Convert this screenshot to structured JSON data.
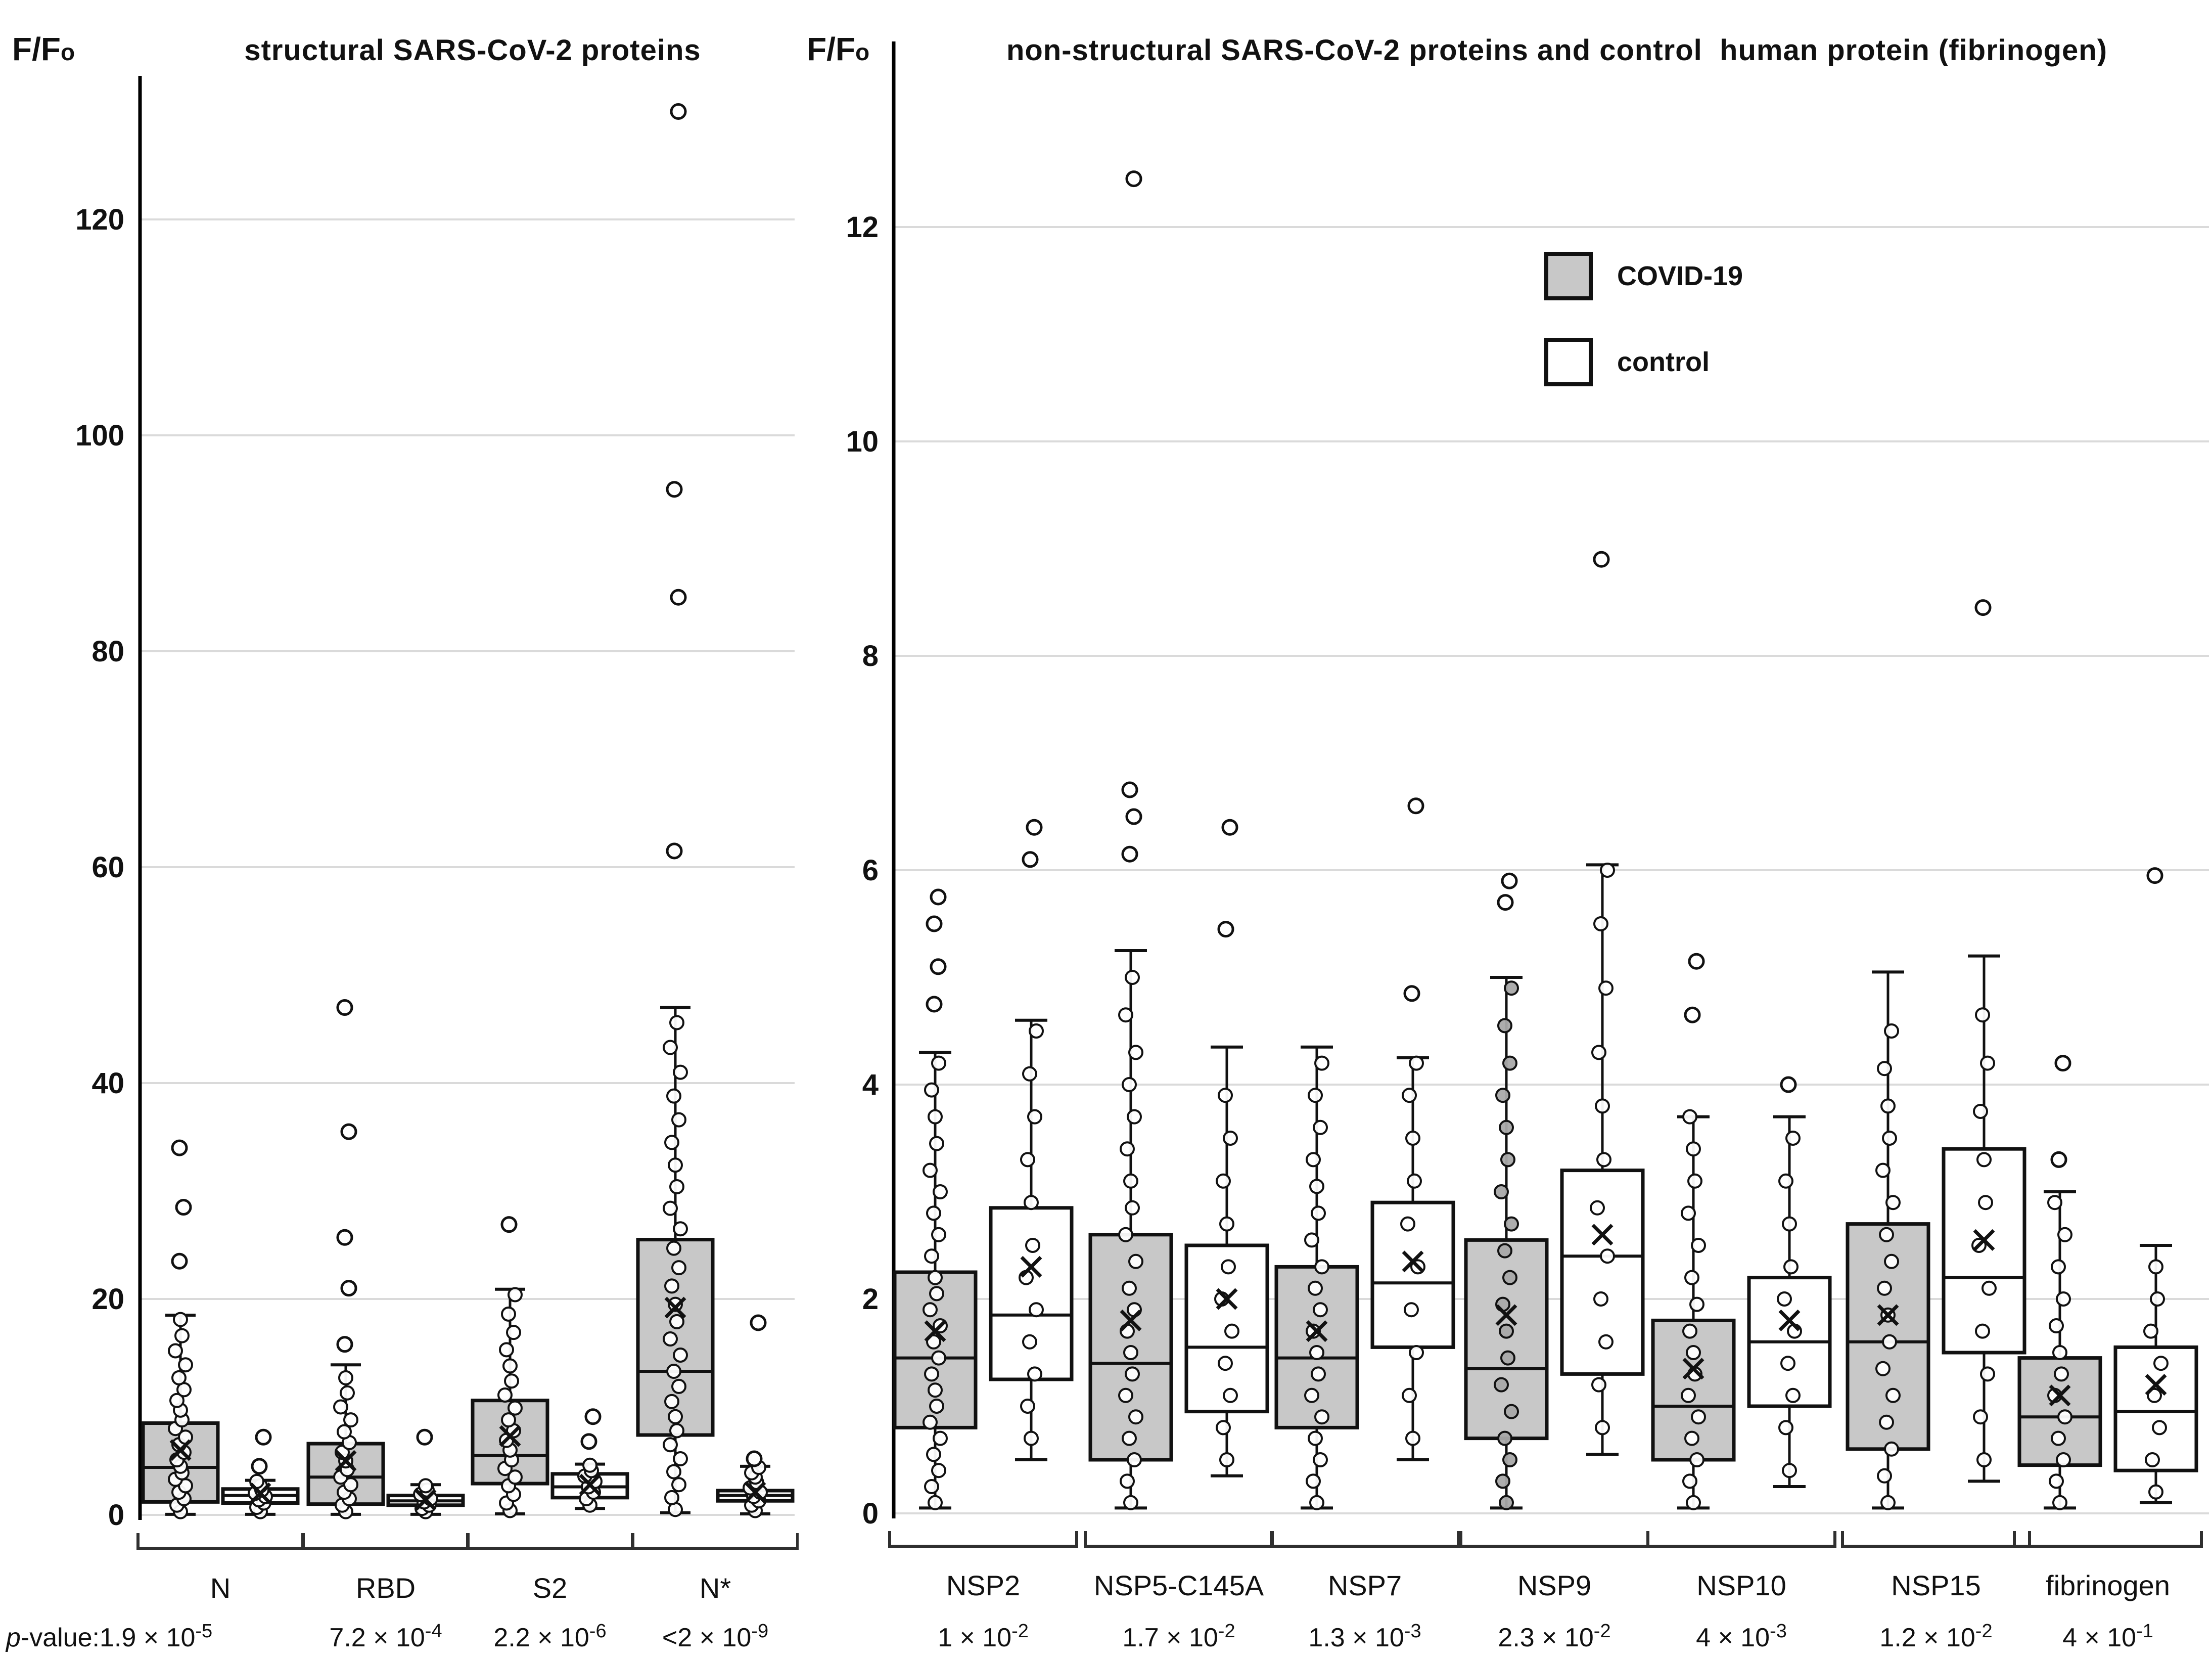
{
  "chart_data": {
    "type": "boxplot",
    "legend": [
      {
        "label": "COVID-19",
        "series": "covid"
      },
      {
        "label": "control",
        "series": "control"
      }
    ],
    "panels": [
      {
        "id": "structural",
        "title": "structural SARS-CoV-2 proteins",
        "y_axis_label": "F/F",
        "y_axis_label_sub": "o",
        "p_label_italic": "p",
        "p_label_rest": "-value:",
        "ylim": [
          0,
          133
        ],
        "yticks": [
          0,
          20,
          40,
          60,
          80,
          100,
          120
        ],
        "grid": "horizontal",
        "groups": [
          {
            "label": "N",
            "p_value_base": "1.9 × 10",
            "p_value_exp": "-5",
            "covid": {
              "whisker_low": 0.05,
              "q1": 1.2,
              "median": 4.4,
              "q3": 8.5,
              "whisker_high": 18.5,
              "mean": 6.0,
              "outliers": [
                23.5,
                28.5,
                34
              ],
              "points": [
                0.3,
                0.9,
                1.5,
                2.1,
                2.7,
                3.3,
                3.9,
                4.5,
                5.1,
                5.8,
                6.5,
                7.2,
                8.0,
                8.8,
                9.7,
                10.6,
                11.6,
                12.7,
                13.9,
                15.2,
                16.6,
                18.1
              ]
            },
            "control": {
              "whisker_low": 0.05,
              "q1": 1.1,
              "median": 1.8,
              "q3": 2.4,
              "whisker_high": 3.2,
              "mean": 2.0,
              "outliers": [
                4.5,
                7.2
              ],
              "points": [
                0.3,
                0.7,
                1.1,
                1.4,
                1.7,
                2.0,
                2.3,
                2.7,
                3.1
              ]
            }
          },
          {
            "label": "RBD",
            "p_value_base": "7.2 × 10",
            "p_value_exp": "-4",
            "covid": {
              "whisker_low": 0.05,
              "q1": 1.0,
              "median": 3.5,
              "q3": 6.6,
              "whisker_high": 13.9,
              "mean": 5.0,
              "outliers": [
                15.8,
                21,
                25.7,
                35.5,
                47
              ],
              "points": [
                0.3,
                0.9,
                1.5,
                2.1,
                2.8,
                3.5,
                4.2,
                5.0,
                5.8,
                6.7,
                7.7,
                8.8,
                10,
                11.3,
                12.7
              ]
            },
            "control": {
              "whisker_low": 0.05,
              "q1": 0.9,
              "median": 1.3,
              "q3": 1.8,
              "whisker_high": 2.8,
              "mean": 1.4,
              "outliers": [
                7.2
              ],
              "points": [
                0.3,
                0.6,
                0.9,
                1.2,
                1.5,
                1.9,
                2.3,
                2.7
              ]
            }
          },
          {
            "label": "S2",
            "p_value_base": "2.2 × 10",
            "p_value_exp": "-6",
            "covid": {
              "whisker_low": 0.1,
              "q1": 2.9,
              "median": 5.5,
              "q3": 10.6,
              "whisker_high": 20.9,
              "mean": 7.3,
              "outliers": [
                26.9
              ],
              "points": [
                0.4,
                1.1,
                1.9,
                2.7,
                3.5,
                4.3,
                5.1,
                6,
                6.9,
                7.8,
                8.8,
                9.9,
                11.1,
                12.4,
                13.8,
                15.3,
                16.9,
                18.6,
                20.4
              ]
            },
            "control": {
              "whisker_low": 0.6,
              "q1": 1.6,
              "median": 2.6,
              "q3": 3.8,
              "whisker_high": 4.7,
              "mean": 2.8,
              "outliers": [
                6.8,
                9.1
              ],
              "points": [
                0.9,
                1.5,
                2.1,
                2.6,
                3.1,
                3.6,
                4.1,
                4.6
              ]
            }
          },
          {
            "label": "N*",
            "p_value_base": "<2 × 10",
            "p_value_exp": "-9",
            "covid": {
              "whisker_low": 0.2,
              "q1": 7.4,
              "median": 13.3,
              "q3": 25.5,
              "whisker_high": 47,
              "mean": 19.2,
              "outliers": [
                61.5,
                85,
                95,
                130
              ],
              "points": [
                0.5,
                1.6,
                2.8,
                4,
                5.2,
                6.5,
                7.8,
                9.1,
                10.5,
                11.9,
                13.3,
                14.8,
                16.3,
                17.9,
                19.5,
                21.2,
                22.9,
                24.7,
                26.5,
                28.4,
                30.4,
                32.4,
                34.5,
                36.6,
                38.8,
                41,
                43.3,
                45.6
              ]
            },
            "control": {
              "whisker_low": 0.1,
              "q1": 1.3,
              "median": 1.8,
              "q3": 2.25,
              "whisker_high": 4.5,
              "mean": 2.1,
              "outliers": [
                5.2,
                17.8
              ],
              "points": [
                0.4,
                0.9,
                1.3,
                1.7,
                2.1,
                2.5,
                3.0,
                3.5,
                3.9,
                4.4
              ]
            }
          }
        ]
      },
      {
        "id": "non-structural",
        "title": "non-structural SARS-CoV-2 proteins and control  human protein (fibrinogen)",
        "y_axis_label": "F/F",
        "y_axis_label_sub": "o",
        "ylim": [
          0,
          13.2
        ],
        "yticks": [
          0,
          2,
          4,
          6,
          8,
          10,
          12
        ],
        "grid": "horizontal",
        "groups": [
          {
            "label": "NSP2",
            "p_value_base": "1 × 10",
            "p_value_exp": "-2",
            "covid": {
              "whisker_low": 0.05,
              "q1": 0.8,
              "median": 1.45,
              "q3": 2.25,
              "whisker_high": 4.3,
              "mean": 1.7,
              "outliers": [
                4.75,
                5.1,
                5.5,
                5.75
              ],
              "points": [
                0.1,
                0.25,
                0.4,
                0.55,
                0.7,
                0.85,
                1.0,
                1.15,
                1.3,
                1.45,
                1.6,
                1.75,
                1.9,
                2.05,
                2.2,
                2.4,
                2.6,
                2.8,
                3.0,
                3.2,
                3.45,
                3.7,
                3.95,
                4.2
              ]
            },
            "control": {
              "whisker_low": 0.5,
              "q1": 1.25,
              "median": 1.85,
              "q3": 2.85,
              "whisker_high": 4.6,
              "mean": 2.3,
              "outliers": [
                6.1,
                6.4
              ],
              "points": [
                0.7,
                1.0,
                1.3,
                1.6,
                1.9,
                2.2,
                2.5,
                2.9,
                3.3,
                3.7,
                4.1,
                4.5
              ]
            }
          },
          {
            "label": "NSP5-C145A",
            "p_value_base": "1.7 × 10",
            "p_value_exp": "-2",
            "covid": {
              "whisker_low": 0.05,
              "q1": 0.5,
              "median": 1.4,
              "q3": 2.6,
              "whisker_high": 5.25,
              "mean": 1.8,
              "outliers": [
                6.15,
                6.5,
                6.75,
                12.45
              ],
              "points": [
                0.1,
                0.3,
                0.5,
                0.7,
                0.9,
                1.1,
                1.3,
                1.5,
                1.7,
                1.9,
                2.1,
                2.35,
                2.6,
                2.85,
                3.1,
                3.4,
                3.7,
                4.0,
                4.3,
                4.65,
                5.0
              ]
            },
            "control": {
              "whisker_low": 0.35,
              "q1": 0.95,
              "median": 1.55,
              "q3": 2.5,
              "whisker_high": 4.35,
              "mean": 2.0,
              "outliers": [
                5.45,
                6.4
              ],
              "points": [
                0.5,
                0.8,
                1.1,
                1.4,
                1.7,
                2.0,
                2.3,
                2.7,
                3.1,
                3.5,
                3.9
              ]
            }
          },
          {
            "label": "NSP7",
            "p_value_base": "1.3 × 10",
            "p_value_exp": "-3",
            "covid": {
              "whisker_low": 0.05,
              "q1": 0.8,
              "median": 1.45,
              "q3": 2.3,
              "whisker_high": 4.35,
              "mean": 1.7,
              "outliers": [],
              "points": [
                0.1,
                0.3,
                0.5,
                0.7,
                0.9,
                1.1,
                1.3,
                1.5,
                1.7,
                1.9,
                2.1,
                2.3,
                2.55,
                2.8,
                3.05,
                3.3,
                3.6,
                3.9,
                4.2
              ]
            },
            "control": {
              "whisker_low": 0.5,
              "q1": 1.55,
              "median": 2.15,
              "q3": 2.9,
              "whisker_high": 4.25,
              "mean": 2.35,
              "outliers": [
                4.85,
                6.6
              ],
              "points": [
                0.7,
                1.1,
                1.5,
                1.9,
                2.3,
                2.7,
                3.1,
                3.5,
                3.9,
                4.2
              ]
            }
          },
          {
            "label": "NSP9",
            "p_value_base": "2.3 × 10",
            "p_value_exp": "-2",
            "covid": {
              "whisker_low": 0.05,
              "q1": 0.7,
              "median": 1.35,
              "q3": 2.55,
              "whisker_high": 5.0,
              "mean": 1.85,
              "outliers": [
                5.7,
                5.9
              ],
              "point_fill": "gray",
              "points": [
                0.1,
                0.3,
                0.5,
                0.7,
                0.95,
                1.2,
                1.45,
                1.7,
                1.95,
                2.2,
                2.45,
                2.7,
                3.0,
                3.3,
                3.6,
                3.9,
                4.2,
                4.55,
                4.9
              ]
            },
            "control": {
              "whisker_low": 0.55,
              "q1": 1.3,
              "median": 2.4,
              "q3": 3.2,
              "whisker_high": 6.05,
              "mean": 2.6,
              "outliers": [
                8.9
              ],
              "points": [
                0.8,
                1.2,
                1.6,
                2.0,
                2.4,
                2.85,
                3.3,
                3.8,
                4.3,
                4.9,
                5.5,
                6.0
              ]
            }
          },
          {
            "label": "NSP10",
            "p_value_base": "4 × 10",
            "p_value_exp": "-3",
            "covid": {
              "whisker_low": 0.05,
              "q1": 0.5,
              "median": 1.0,
              "q3": 1.8,
              "whisker_high": 3.7,
              "mean": 1.35,
              "outliers": [
                4.65,
                5.15
              ],
              "points": [
                0.1,
                0.3,
                0.5,
                0.7,
                0.9,
                1.1,
                1.3,
                1.5,
                1.7,
                1.95,
                2.2,
                2.5,
                2.8,
                3.1,
                3.4,
                3.7
              ]
            },
            "control": {
              "whisker_low": 0.25,
              "q1": 1.0,
              "median": 1.6,
              "q3": 2.2,
              "whisker_high": 3.7,
              "mean": 1.8,
              "outliers": [
                4.0
              ],
              "points": [
                0.4,
                0.8,
                1.1,
                1.4,
                1.7,
                2.0,
                2.3,
                2.7,
                3.1,
                3.5
              ]
            }
          },
          {
            "label": "NSP15",
            "p_value_base": "1.2 × 10",
            "p_value_exp": "-2",
            "covid": {
              "whisker_low": 0.05,
              "q1": 0.6,
              "median": 1.6,
              "q3": 2.7,
              "whisker_high": 5.05,
              "mean": 1.85,
              "outliers": [],
              "points": [
                0.1,
                0.35,
                0.6,
                0.85,
                1.1,
                1.35,
                1.6,
                1.85,
                2.1,
                2.35,
                2.6,
                2.9,
                3.2,
                3.5,
                3.8,
                4.15,
                4.5
              ]
            },
            "control": {
              "whisker_low": 0.3,
              "q1": 1.5,
              "median": 2.2,
              "q3": 3.4,
              "whisker_high": 5.2,
              "mean": 2.55,
              "outliers": [
                8.45
              ],
              "points": [
                0.5,
                0.9,
                1.3,
                1.7,
                2.1,
                2.5,
                2.9,
                3.3,
                3.75,
                4.2,
                4.65
              ]
            }
          },
          {
            "label": "fibrinogen",
            "p_value_base": "4 × 10",
            "p_value_exp": "-1",
            "covid": {
              "whisker_low": 0.05,
              "q1": 0.45,
              "median": 0.9,
              "q3": 1.45,
              "whisker_high": 3.0,
              "mean": 1.1,
              "outliers": [
                3.3,
                4.2
              ],
              "points": [
                0.1,
                0.3,
                0.5,
                0.7,
                0.9,
                1.1,
                1.3,
                1.5,
                1.75,
                2.0,
                2.3,
                2.6,
                2.9
              ]
            },
            "control": {
              "whisker_low": 0.1,
              "q1": 0.4,
              "median": 0.95,
              "q3": 1.55,
              "whisker_high": 2.5,
              "mean": 1.2,
              "outliers": [
                5.95
              ],
              "points": [
                0.2,
                0.5,
                0.8,
                1.1,
                1.4,
                1.7,
                2.0,
                2.3
              ]
            }
          }
        ]
      }
    ]
  },
  "figure": {
    "colors": {
      "covid_fill": "#c8c8c8",
      "control_fill": "#ffffff",
      "stroke": "#111111",
      "grid": "#dadada",
      "point_fill": "#ffffff",
      "gray_point_fill": "#a9a9a9",
      "bracket": "#2f2f2f"
    }
  }
}
